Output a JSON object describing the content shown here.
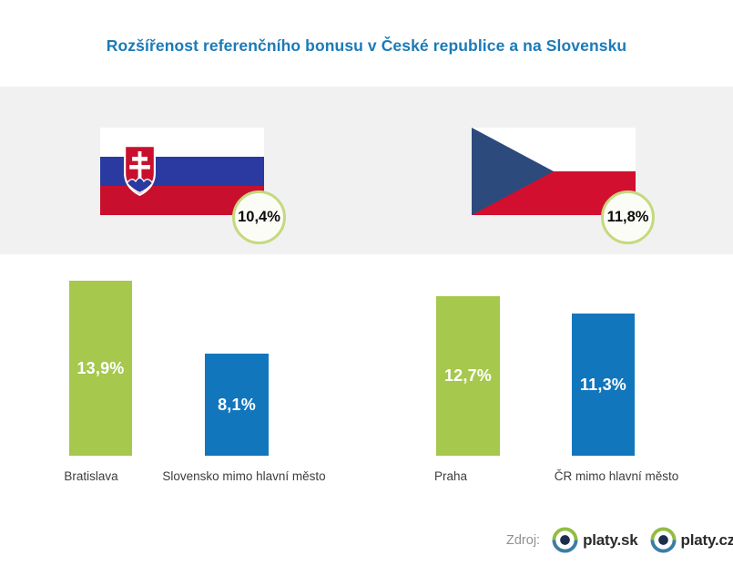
{
  "page": {
    "title": "Rozšířenost referenčního bonusu v České republice a na Slovensku",
    "title_color": "#1b7ab8",
    "band_color": "#f1f1f2"
  },
  "colors": {
    "green_bar": "#a5c84d",
    "blue_bar": "#1276bd",
    "badge_border": "#c5d97e",
    "slovak_flag_blue": "#2b3aa0",
    "slovak_flag_red": "#c8102e",
    "czech_flag_blue": "#2d4a7d",
    "czech_flag_red": "#d20f2f",
    "logo_green": "#93bd42",
    "logo_blue": "#3c7da4",
    "logo_pupil": "#1d2d4d"
  },
  "chart_data": {
    "type": "bar",
    "title": "Rozšířenost referenčního bonusu v České republice a na Slovensku",
    "categories": [
      "Bratislava",
      "Slovensko mimo hlavní město",
      "Praha",
      "ČR mimo hlavní město"
    ],
    "values": [
      13.9,
      8.1,
      12.7,
      11.3
    ],
    "value_labels": [
      "13,9%",
      "8,1%",
      "12,7%",
      "11,3%"
    ],
    "bar_colors": [
      "#a5c84d",
      "#1276bd",
      "#a5c84d",
      "#1276bd"
    ],
    "country_totals": [
      {
        "country": "Slovensko",
        "value": 10.4,
        "label": "10,4%"
      },
      {
        "country": "Česká republika",
        "value": 11.8,
        "label": "11,8%"
      }
    ],
    "ylim": [
      0,
      14.5
    ],
    "grid": false,
    "legend": false,
    "ylabel": "",
    "xlabel": ""
  },
  "footer": {
    "source_label": "Zdroj:",
    "sources": [
      "platy.sk",
      "platy.cz"
    ]
  }
}
